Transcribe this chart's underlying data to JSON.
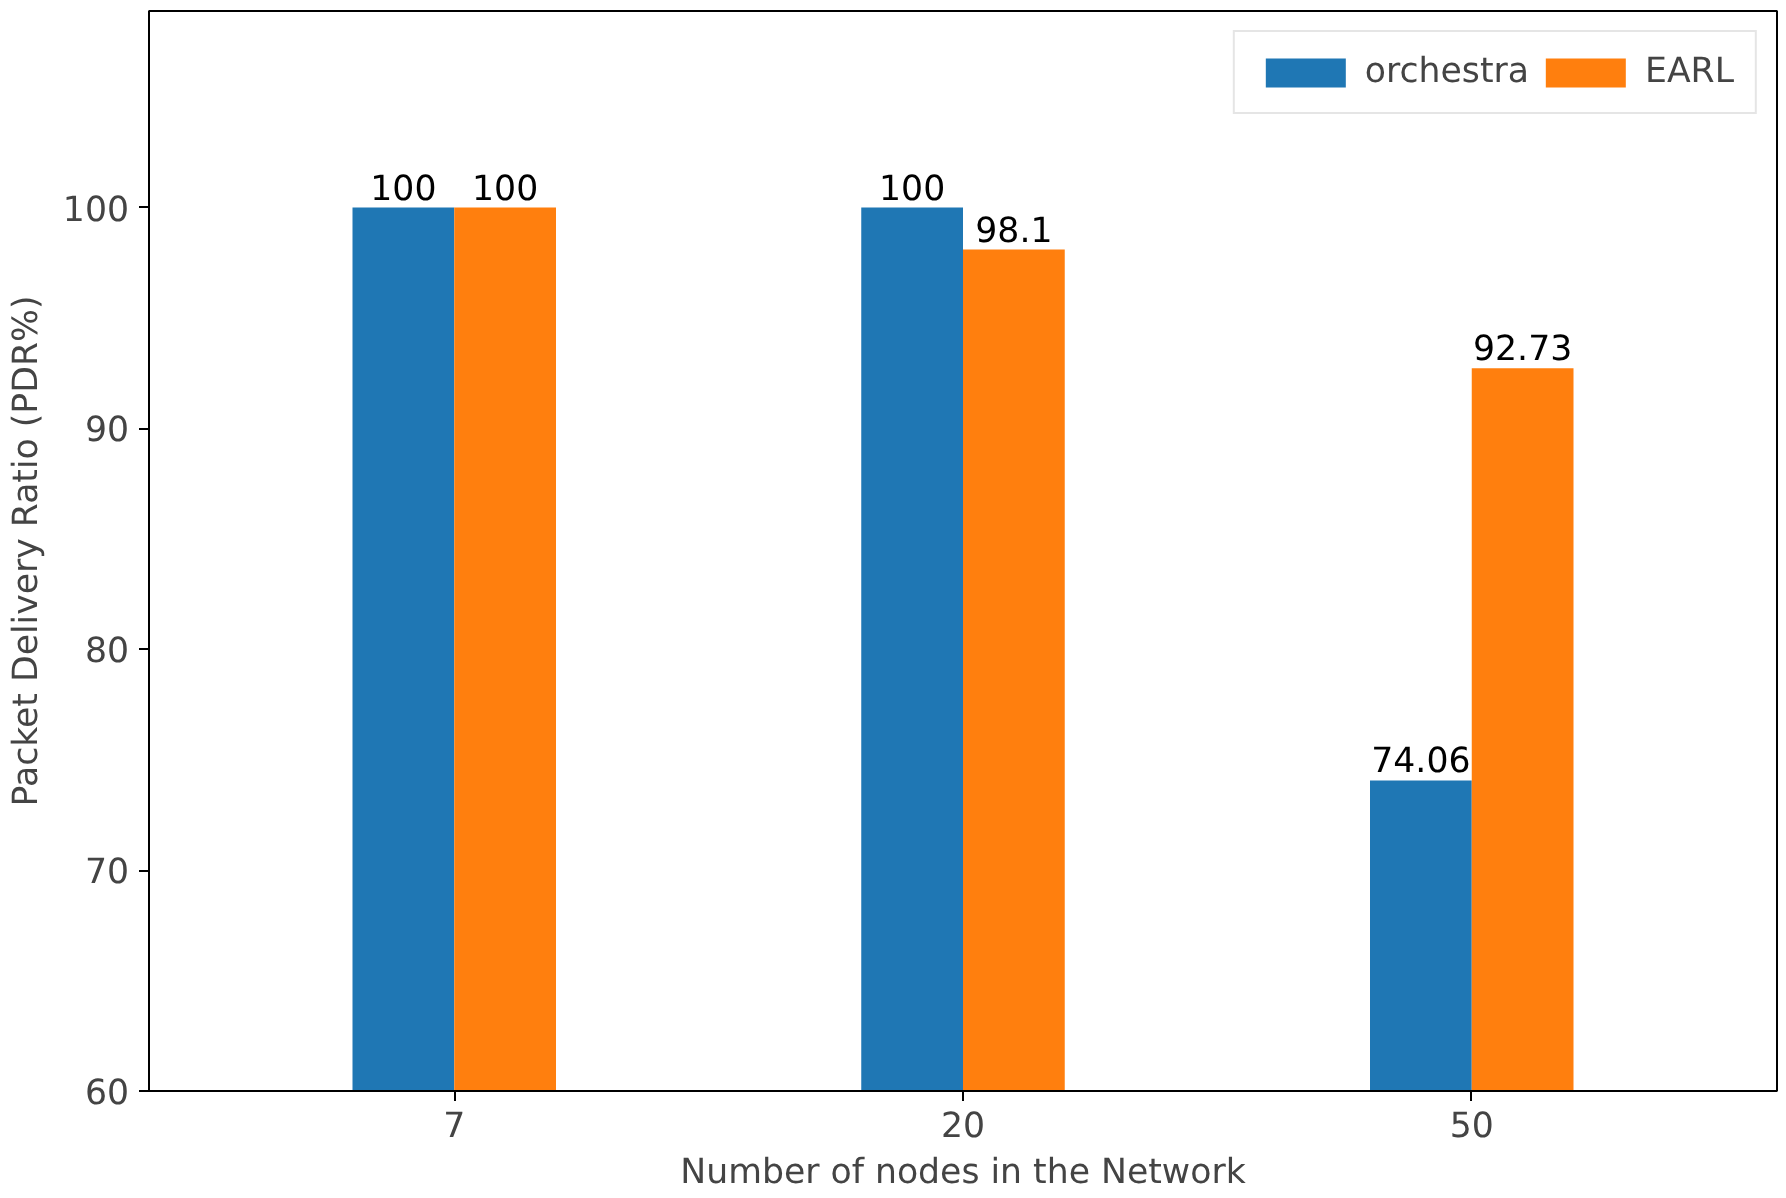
{
  "chart_data": {
    "type": "bar",
    "xlabel": "Number of nodes in the Network",
    "ylabel": "Packet Delivery Ratio (PDR%)",
    "categories": [
      "7",
      "20",
      "50"
    ],
    "series": [
      {
        "name": "orchestra",
        "color": "#1f77b4",
        "values": [
          100,
          100,
          74.06
        ]
      },
      {
        "name": "EARL",
        "color": "#ff7f0e",
        "values": [
          100,
          98.1,
          92.73
        ]
      }
    ],
    "ylim": [
      60,
      108.9
    ],
    "yticks": [
      60,
      70,
      80,
      90,
      100
    ],
    "data_labels": true,
    "legend": "top right",
    "grid": false
  }
}
